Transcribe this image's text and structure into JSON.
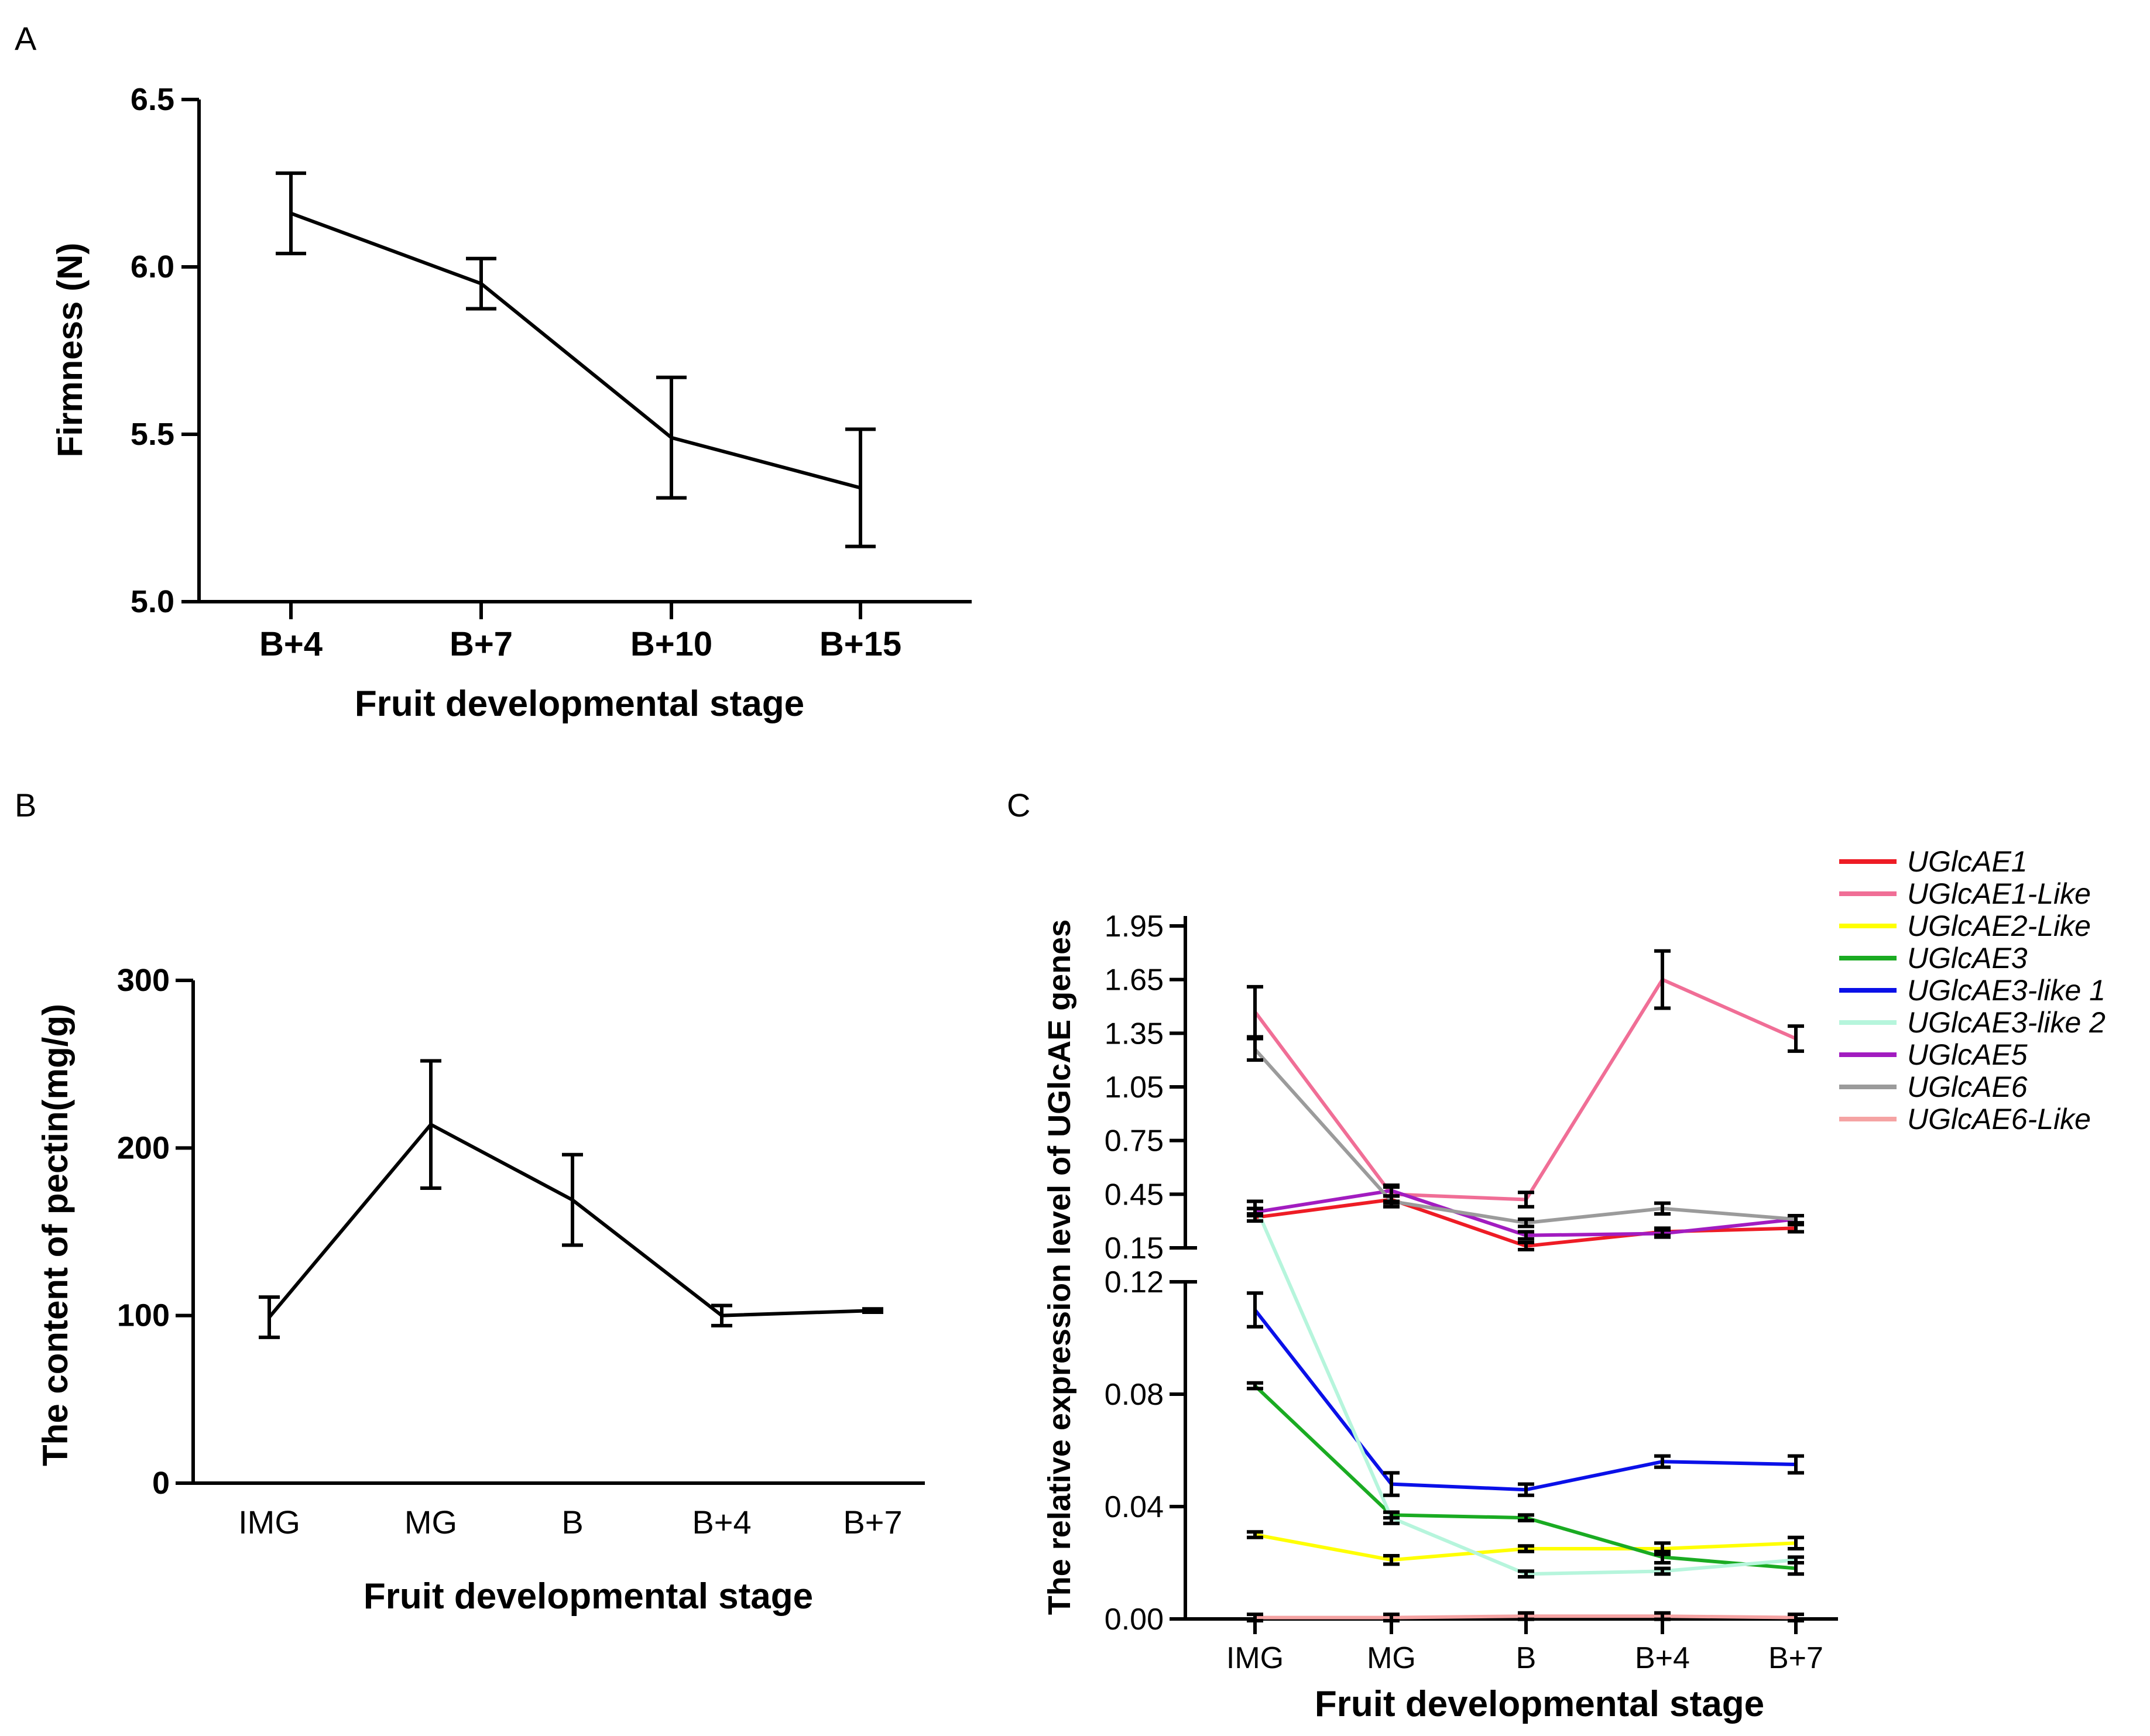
{
  "chart_data": [
    {
      "panel": "A",
      "type": "line",
      "categories": [
        "B+4",
        "B+7",
        "B+10",
        "B+15"
      ],
      "values": [
        6.16,
        5.95,
        5.49,
        5.34
      ],
      "errors": [
        0.12,
        0.075,
        0.18,
        0.175
      ],
      "xlabel": "Fruit developmental stage",
      "ylabel": "Firmness (N)",
      "ylim": [
        5.0,
        6.5
      ],
      "yticks": [
        "5.0",
        "5.5",
        "6.0",
        "6.5"
      ],
      "color": "#000000"
    },
    {
      "panel": "B",
      "type": "line",
      "categories": [
        "IMG",
        "MG",
        "B",
        "B+4",
        "B+7"
      ],
      "values": [
        99,
        214,
        169,
        100,
        103
      ],
      "errors": [
        12,
        38,
        27,
        6,
        1
      ],
      "xlabel": "Fruit developmental stage",
      "ylabel": "The content of pectin(mg/g)",
      "ylim": [
        0,
        300
      ],
      "yticks": [
        "0",
        "100",
        "200",
        "300"
      ],
      "color": "#000000"
    },
    {
      "panel": "C",
      "type": "line",
      "categories": [
        "IMG",
        "MG",
        "B",
        "B+4",
        "B+7"
      ],
      "xlabel": "Fruit developmental stage",
      "ylabel": "The relative expression level of UGlcAE genes",
      "upper_ylim": [
        0.15,
        1.95
      ],
      "upper_yticks": [
        "0.15",
        "0.45",
        "0.75",
        "1.05",
        "1.35",
        "1.65",
        "1.95"
      ],
      "lower_ylim": [
        0.0,
        0.12
      ],
      "lower_yticks": [
        "0.00",
        "0.04",
        "0.08",
        "0.12"
      ],
      "series": [
        {
          "name": "UGlcAE1",
          "color": "#ee1c25",
          "values": [
            0.32,
            0.42,
            0.16,
            0.24,
            0.26
          ],
          "errors": [
            0.02,
            0.02,
            0.02,
            0.02,
            0.02
          ]
        },
        {
          "name": "UGlcAE1-Like",
          "color": "#f06e96",
          "values": [
            1.47,
            0.45,
            0.42,
            1.65,
            1.32
          ],
          "errors": [
            0.14,
            0.04,
            0.04,
            0.16,
            0.07
          ]
        },
        {
          "name": "UGlcAE2-Like",
          "color": "#ffff00",
          "values": [
            0.03,
            0.021,
            0.025,
            0.025,
            0.027
          ],
          "errors": [
            0.001,
            0.0015,
            0.001,
            0.002,
            0.002
          ]
        },
        {
          "name": "UGlcAE3",
          "color": "#1aab22",
          "values": [
            0.083,
            0.037,
            0.036,
            0.022,
            0.018
          ],
          "errors": [
            0.001,
            0.001,
            0.001,
            0.002,
            0.002
          ]
        },
        {
          "name": "UGlcAE3-like 1",
          "color": "#0a10e8",
          "values": [
            0.11,
            0.048,
            0.046,
            0.056,
            0.055
          ],
          "errors": [
            0.006,
            0.004,
            0.002,
            0.002,
            0.003
          ]
        },
        {
          "name": "UGlcAE3-like 2",
          "color": "#b6f5dc",
          "values": [
            0.39,
            0.036,
            0.016,
            0.017,
            0.021
          ],
          "errors": [
            0.02,
            0.002,
            0.001,
            0.001,
            0.001
          ]
        },
        {
          "name": "UGlcAE5",
          "color": "#a21cc0",
          "values": [
            0.35,
            0.47,
            0.22,
            0.23,
            0.31
          ],
          "errors": [
            0.02,
            0.03,
            0.02,
            0.02,
            0.02
          ]
        },
        {
          "name": "UGlcAE6",
          "color": "#9b9b9b",
          "values": [
            1.26,
            0.41,
            0.29,
            0.37,
            0.31
          ],
          "errors": [
            0.06,
            0.03,
            0.02,
            0.03,
            0.02
          ]
        },
        {
          "name": "UGlcAE6-Like",
          "color": "#f5a3a3",
          "values": [
            0.0005,
            0.0005,
            0.001,
            0.001,
            0.0005
          ],
          "errors": [
            0.0003,
            0.0003,
            0.0003,
            0.0003,
            0.0003
          ]
        }
      ]
    }
  ],
  "panel_labels": [
    "A",
    "B",
    "C"
  ]
}
